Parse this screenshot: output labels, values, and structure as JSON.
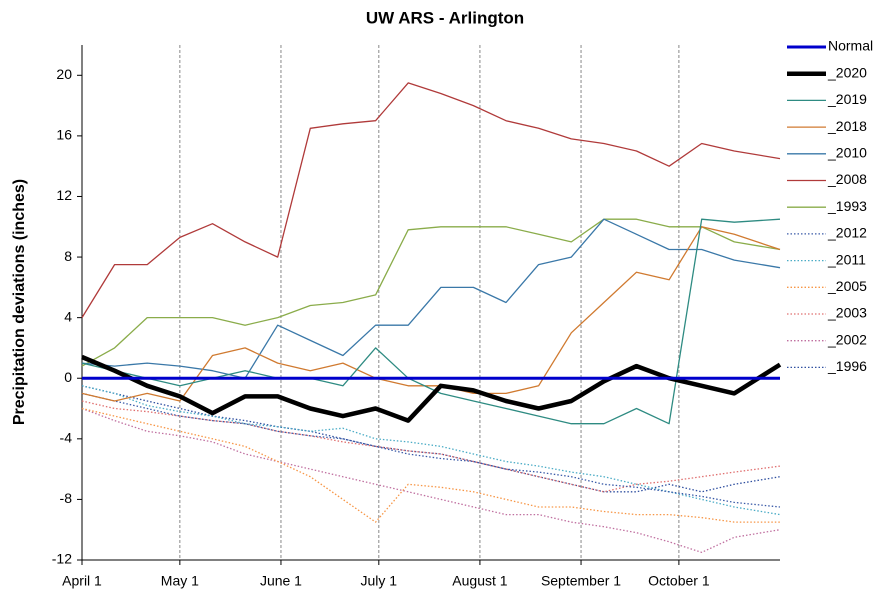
{
  "chart_data": {
    "type": "line",
    "title": "UW ARS - Arlington",
    "y_label": "Precipitation deviations (inches)",
    "x": [
      0,
      10,
      20,
      30,
      40,
      50,
      60,
      70,
      80,
      90,
      100,
      110,
      120,
      130,
      140,
      150,
      160,
      170,
      180,
      190,
      200,
      214
    ],
    "xlim": [
      0,
      214
    ],
    "xticks": [
      {
        "value": 0,
        "label": "April 1"
      },
      {
        "value": 30,
        "label": "May 1"
      },
      {
        "value": 61,
        "label": "June 1"
      },
      {
        "value": 91,
        "label": "July 1"
      },
      {
        "value": 122,
        "label": "August 1"
      },
      {
        "value": 153,
        "label": "September 1"
      },
      {
        "value": 183,
        "label": "October 1"
      }
    ],
    "ylim": [
      -12,
      22
    ],
    "yticks": [
      -12,
      -8,
      -4,
      0,
      4,
      8,
      12,
      16,
      20
    ],
    "x_grid": true,
    "legend": "right",
    "series": [
      {
        "name": "Normal",
        "color": "#0000cc",
        "line_style": "medium",
        "values": [
          0,
          0,
          0,
          0,
          0,
          0,
          0,
          0,
          0,
          0,
          0,
          0,
          0,
          0,
          0,
          0,
          0,
          0,
          0,
          0,
          0,
          0
        ]
      },
      {
        "name": "_2020",
        "color": "#000000",
        "line_style": "thick",
        "values": [
          1.4,
          0.5,
          -0.5,
          -1.2,
          -2.3,
          -1.2,
          -1.2,
          -2,
          -2.5,
          -2,
          -2.8,
          -0.5,
          -0.8,
          -1.5,
          -2,
          -1.5,
          -0.2,
          0.8,
          0,
          -0.5,
          -1,
          0.9
        ]
      },
      {
        "name": "_2019",
        "color": "#2e8b82",
        "line_style": "solid",
        "values": [
          1,
          0.5,
          0,
          -0.5,
          0,
          0.5,
          0,
          0,
          -0.5,
          2,
          0,
          -1,
          -1.5,
          -2,
          -2.5,
          -3,
          -3,
          -2,
          -3,
          10.5,
          10.3,
          10.5
        ]
      },
      {
        "name": "_2018",
        "color": "#d07a30",
        "line_style": "solid",
        "values": [
          -1,
          -1.5,
          -1,
          -1.5,
          1.5,
          2,
          1,
          0.5,
          1,
          0,
          -0.5,
          -0.5,
          -1,
          -1,
          -0.5,
          3,
          5,
          7,
          6.5,
          10,
          9.5,
          8.5
        ]
      },
      {
        "name": "_2010",
        "color": "#3a78a8",
        "line_style": "solid",
        "values": [
          1,
          0.8,
          1,
          0.8,
          0.5,
          0,
          3.5,
          2.5,
          1.5,
          3.5,
          3.5,
          6,
          6,
          5,
          7.5,
          8,
          10.5,
          9.5,
          8.5,
          8.5,
          7.8,
          7.3
        ]
      },
      {
        "name": "_2008",
        "color": "#b03a3a",
        "line_style": "solid",
        "values": [
          4,
          7.5,
          7.5,
          9.3,
          10.2,
          9,
          8,
          16.5,
          16.8,
          17,
          19.5,
          18.8,
          18,
          17,
          16.5,
          15.8,
          15.5,
          15,
          14,
          15.5,
          15,
          14.5
        ]
      },
      {
        "name": "_1993",
        "color": "#8aac4a",
        "line_style": "solid",
        "values": [
          0.8,
          2,
          4,
          4,
          4,
          3.5,
          4,
          4.8,
          5,
          5.5,
          9.8,
          10,
          10,
          10,
          9.5,
          9,
          10.5,
          10.5,
          10,
          10,
          9,
          8.5
        ]
      },
      {
        "name": "_2012",
        "color": "#3b5ba8",
        "line_style": "dotted",
        "values": [
          -1,
          -1.5,
          -2,
          -2.5,
          -2.8,
          -3,
          -3.5,
          -3.8,
          -4,
          -4.5,
          -5,
          -5.3,
          -5.5,
          -6,
          -6.2,
          -6.5,
          -7,
          -7.2,
          -7.5,
          -7.8,
          -8.2,
          -8.5
        ]
      },
      {
        "name": "_2011",
        "color": "#4bacc6",
        "line_style": "dotted",
        "values": [
          -0.5,
          -1,
          -1.8,
          -2.2,
          -2.5,
          -3,
          -3.2,
          -3.5,
          -3.3,
          -4,
          -4.2,
          -4.5,
          -5,
          -5.5,
          -5.8,
          -6.2,
          -6.5,
          -7,
          -7.5,
          -8,
          -8.5,
          -9
        ]
      },
      {
        "name": "_2005",
        "color": "#f79646",
        "line_style": "dotted",
        "values": [
          -2,
          -2.5,
          -3,
          -3.5,
          -4,
          -4.5,
          -5.5,
          -6.5,
          -8,
          -9.5,
          -7,
          -7.2,
          -7.5,
          -8,
          -8.5,
          -8.5,
          -8.8,
          -9,
          -9,
          -9.2,
          -9.5,
          -9.5
        ]
      },
      {
        "name": "_2003",
        "color": "#e07070",
        "line_style": "dotted",
        "values": [
          -1.5,
          -2,
          -2.2,
          -2.5,
          -2.8,
          -3,
          -3.5,
          -3.8,
          -4.2,
          -4.5,
          -4.8,
          -5,
          -5.5,
          -6,
          -6.5,
          -7,
          -7.5,
          -7,
          -6.8,
          -6.5,
          -6.2,
          -5.8
        ]
      },
      {
        "name": "_2002",
        "color": "#c070a0",
        "line_style": "dotted",
        "values": [
          -2,
          -2.8,
          -3.5,
          -3.8,
          -4.2,
          -5,
          -5.5,
          -6,
          -6.5,
          -7,
          -7.5,
          -8,
          -8.5,
          -9,
          -9,
          -9.5,
          -9.8,
          -10.2,
          -10.8,
          -11.5,
          -10.5,
          -10
        ]
      },
      {
        "name": "_1996",
        "color": "#3050a0",
        "line_style": "dotted",
        "values": [
          -0.5,
          -1,
          -1.5,
          -2,
          -2.5,
          -2.8,
          -3.2,
          -3.5,
          -4,
          -4.5,
          -4.8,
          -5,
          -5.5,
          -6,
          -6.5,
          -7,
          -7.5,
          -7.5,
          -7,
          -7.5,
          -7,
          -6.5
        ]
      }
    ]
  }
}
